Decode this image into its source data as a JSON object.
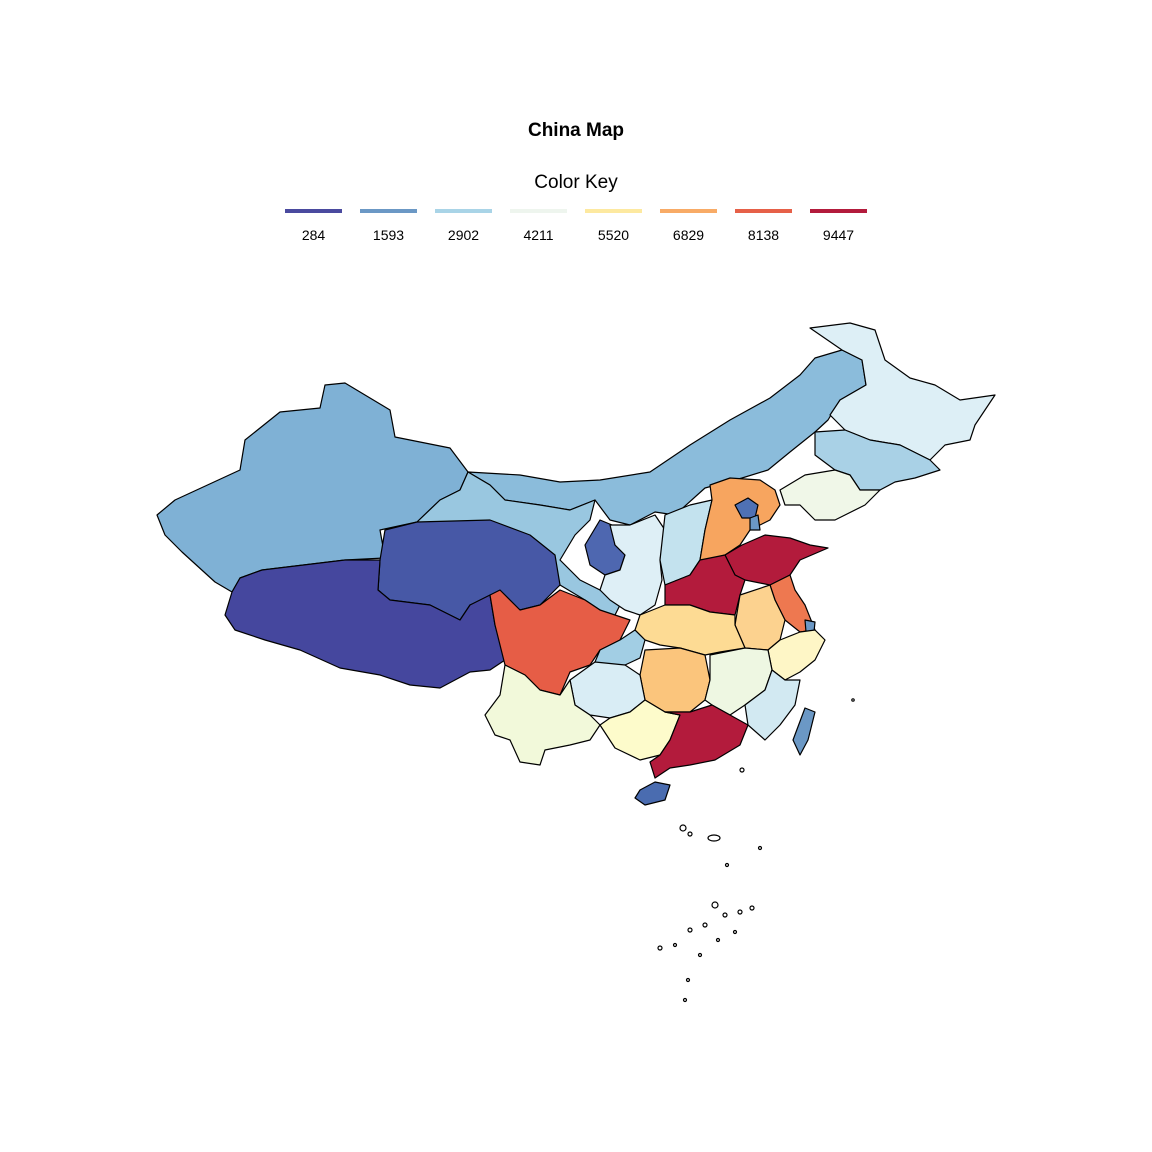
{
  "title": "China Map",
  "legend": {
    "title": "Color Key",
    "keys": [
      {
        "label": "284",
        "color": "#4a4a9f"
      },
      {
        "label": "1593",
        "color": "#6b98c5"
      },
      {
        "label": "2902",
        "color": "#a9d4e7"
      },
      {
        "label": "4211",
        "color": "#eef5ee"
      },
      {
        "label": "5520",
        "color": "#fde9a0"
      },
      {
        "label": "6829",
        "color": "#f8ab66"
      },
      {
        "label": "8138",
        "color": "#e66048"
      },
      {
        "label": "9447",
        "color": "#b31b3c"
      }
    ]
  }
}
